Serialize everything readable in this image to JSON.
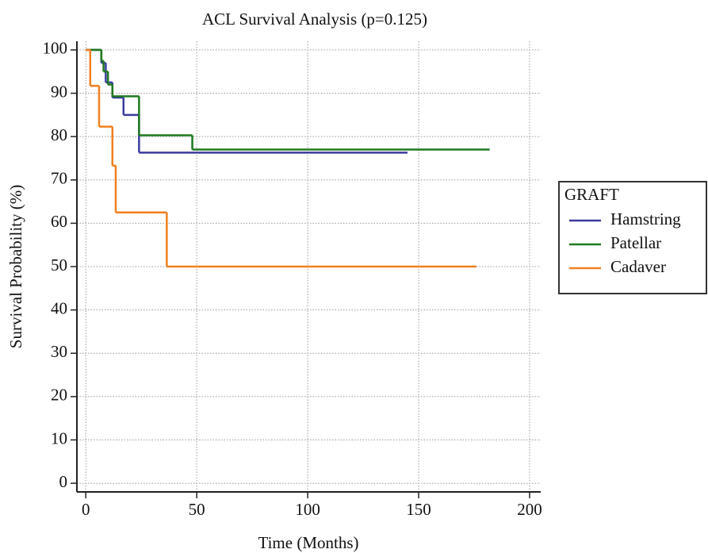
{
  "chart_data": {
    "type": "step",
    "title": "ACL Survival Analysis (p=0.125)",
    "x_label": "Time (Months)",
    "y_label": "Survival Probability (%)",
    "xlim": [
      -4,
      205
    ],
    "ylim": [
      -2,
      102
    ],
    "xticks": [
      0,
      50,
      100,
      150,
      200
    ],
    "yticks": [
      0,
      10,
      20,
      30,
      40,
      50,
      60,
      70,
      80,
      90,
      100
    ],
    "grid": true,
    "legend_title": "GRAFT",
    "legend_position": "right",
    "series": [
      {
        "name": "Hamstring",
        "color": "#3a3aa0",
        "x": [
          0,
          7,
          9,
          12,
          17,
          24,
          145
        ],
        "values": [
          100,
          97,
          92.5,
          89,
          85,
          76.3,
          76.3
        ]
      },
      {
        "name": "Patellar",
        "color": "#1e7a1e",
        "x": [
          0,
          7,
          8,
          10,
          12,
          24,
          48,
          182
        ],
        "values": [
          100,
          97.5,
          95,
          92,
          89.3,
          80.3,
          77,
          77
        ]
      },
      {
        "name": "Cadaver",
        "color": "#f08020",
        "x": [
          0,
          2,
          6,
          12,
          13.5,
          36.5,
          176
        ],
        "values": [
          100,
          91.7,
          82.3,
          73.3,
          62.5,
          50,
          50
        ]
      }
    ]
  }
}
